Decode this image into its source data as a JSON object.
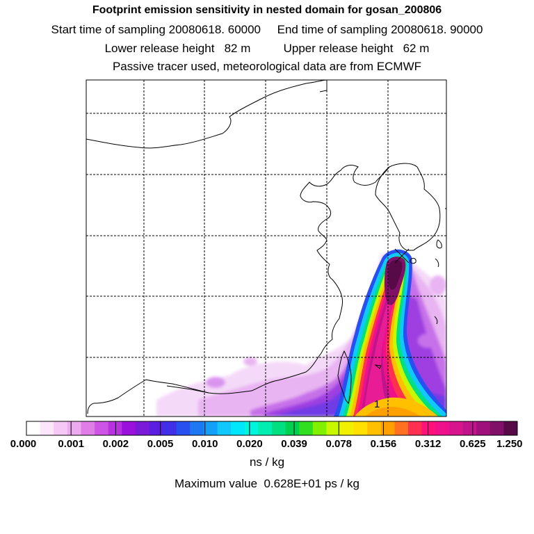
{
  "header": {
    "title": "Footprint emission sensitivity in nested domain for gosan_200806",
    "line2": "Start time of sampling 20080618. 60000     End time of sampling 20080618. 90000",
    "line3": "Lower release height   82 m          Upper release height   62 m",
    "line4": "Passive tracer used, meteorological data are from ECMWF"
  },
  "map": {
    "receptor_label": "1",
    "gridlines": "dashed",
    "coastline_color": "#000000"
  },
  "colorbar": {
    "tick_labels": [
      "0.000",
      "0.001",
      "0.002",
      "0.005",
      "0.010",
      "0.020",
      "0.039",
      "0.078",
      "0.156",
      "0.312",
      "0.625",
      "1.250"
    ],
    "colors": [
      "#ffffff",
      "#fbe6fb",
      "#f5c8f5",
      "#eeaaf0",
      "#e07ee8",
      "#cc55e5",
      "#b733e0",
      "#9a10dc",
      "#7a1ad8",
      "#5c1ee0",
      "#4030e8",
      "#2850f0",
      "#1e78f4",
      "#14a0f8",
      "#10c8fa",
      "#00e6fa",
      "#00f5dc",
      "#00eeb0",
      "#00e080",
      "#00d050",
      "#30e020",
      "#80f000",
      "#c8f800",
      "#f0f000",
      "#ffe000",
      "#ffc000",
      "#ffa000",
      "#ff7020",
      "#ff3050",
      "#ff107a",
      "#f0108c",
      "#d8148c",
      "#c0148c",
      "#a0107c",
      "#801068",
      "#580a48"
    ]
  },
  "units": "ns / kg",
  "maxval": "Maximum value  0.628E+01 ps / kg"
}
